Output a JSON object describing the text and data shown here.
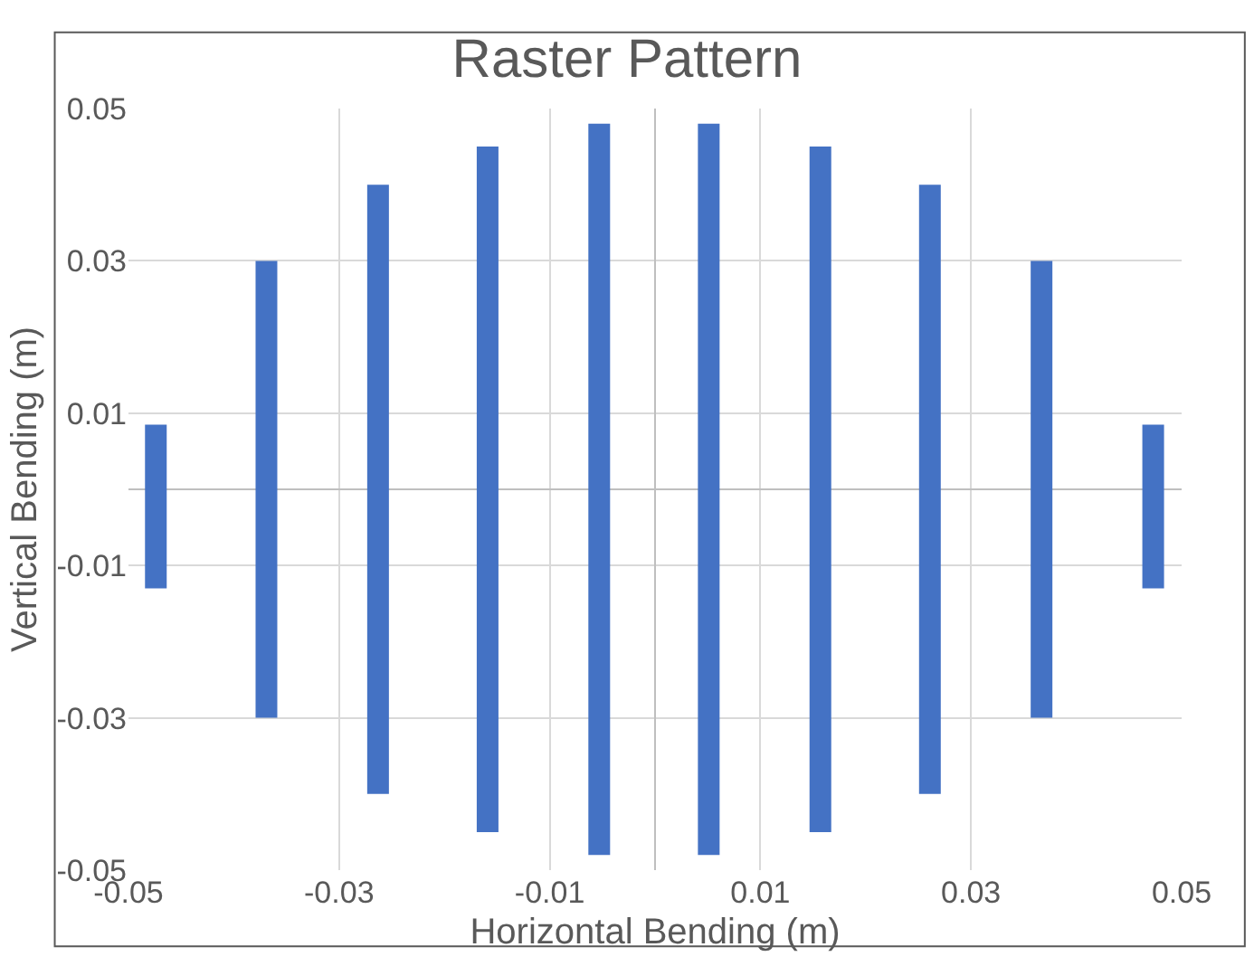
{
  "chart_data": {
    "type": "line",
    "title": "Raster Pattern",
    "xlabel": "Horizontal Bending (m)",
    "ylabel": "Vertical Bending (m)",
    "xlim": [
      -0.05,
      0.05
    ],
    "ylim": [
      -0.05,
      0.05
    ],
    "xticks": [
      -0.05,
      -0.03,
      -0.01,
      0.01,
      0.03,
      0.05
    ],
    "yticks": [
      -0.05,
      -0.03,
      -0.01,
      0.01,
      0.03,
      0.05
    ],
    "grid": true,
    "marker": "none",
    "line_style": "solid",
    "series": [
      {
        "color": "#4472c4",
        "x": [
          -0.0474,
          -0.0474
        ],
        "values": [
          0.0085,
          -0.013
        ]
      },
      {
        "color": "#4472c4",
        "x": [
          -0.0369,
          -0.0369
        ],
        "values": [
          0.03,
          -0.03
        ]
      },
      {
        "color": "#4472c4",
        "x": [
          -0.0263,
          -0.0263
        ],
        "values": [
          0.04,
          -0.04
        ]
      },
      {
        "color": "#4472c4",
        "x": [
          -0.0159,
          -0.0159
        ],
        "values": [
          0.045,
          -0.045
        ]
      },
      {
        "color": "#4472c4",
        "x": [
          -0.0053,
          -0.0053
        ],
        "values": [
          0.048,
          -0.048
        ]
      },
      {
        "color": "#4472c4",
        "x": [
          0.0051,
          0.0051
        ],
        "values": [
          0.048,
          -0.048
        ]
      },
      {
        "color": "#4472c4",
        "x": [
          0.0157,
          0.0157
        ],
        "values": [
          0.045,
          -0.045
        ]
      },
      {
        "color": "#4472c4",
        "x": [
          0.0261,
          0.0261
        ],
        "values": [
          0.04,
          -0.04
        ]
      },
      {
        "color": "#4472c4",
        "x": [
          0.0367,
          0.0367
        ],
        "values": [
          0.03,
          -0.03
        ]
      },
      {
        "color": "#4472c4",
        "x": [
          0.0473,
          0.0473
        ],
        "values": [
          0.0085,
          -0.013
        ]
      }
    ]
  }
}
